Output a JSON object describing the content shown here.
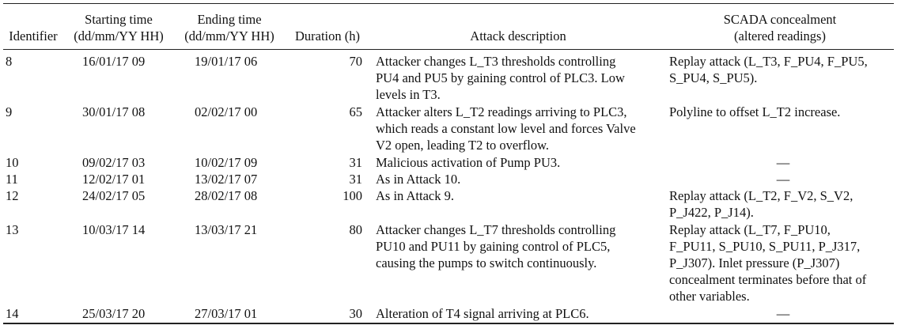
{
  "headers": {
    "identifier": [
      "",
      "Identifier"
    ],
    "starting_time": [
      "Starting time",
      "(dd/mm/YY HH)"
    ],
    "ending_time": [
      "Ending time",
      "(dd/mm/YY HH)"
    ],
    "duration": [
      "",
      "Duration (h)"
    ],
    "attack_description": [
      "",
      "Attack description"
    ],
    "scada": [
      "SCADA concealment",
      "(altered readings)"
    ]
  },
  "rows": [
    {
      "id": "8",
      "start": "16/01/17 09",
      "end": "19/01/17 06",
      "duration": "70",
      "description": [
        "Attacker changes L_T3 thresholds controlling",
        "PU4 and PU5 by gaining control of PLC3. Low",
        "levels in T3."
      ],
      "scada": [
        "Replay attack (L_T3, F_PU4, F_PU5,",
        "S_PU4, S_PU5)."
      ]
    },
    {
      "id": "9",
      "start": "30/01/17 08",
      "end": "02/02/17 00",
      "duration": "65",
      "description": [
        "Attacker alters L_T2 readings arriving to PLC3,",
        "which reads a constant low level and forces Valve",
        "V2 open, leading T2 to overflow."
      ],
      "scada": [
        "Polyline to offset L_T2 increase."
      ]
    },
    {
      "id": "10",
      "start": "09/02/17 03",
      "end": "10/02/17 09",
      "duration": "31",
      "description": [
        "Malicious activation of Pump PU3."
      ],
      "scada": [
        "—"
      ]
    },
    {
      "id": "11",
      "start": "12/02/17 01",
      "end": "13/02/17 07",
      "duration": "31",
      "description": [
        "As in Attack 10."
      ],
      "scada": [
        "—"
      ]
    },
    {
      "id": "12",
      "start": "24/02/17 05",
      "end": "28/02/17 08",
      "duration": "100",
      "description": [
        "As in Attack 9."
      ],
      "scada": [
        "Replay attack (L_T2, F_V2, S_V2,",
        "P_J422, P_J14)."
      ]
    },
    {
      "id": "13",
      "start": "10/03/17 14",
      "end": "13/03/17 21",
      "duration": "80",
      "description": [
        "Attacker changes L_T7 thresholds controlling",
        "PU10 and PU11 by gaining control of PLC5,",
        "causing the pumps to switch continuously."
      ],
      "scada": [
        "Replay attack (L_T7, F_PU10,",
        "F_PU11, S_PU10, S_PU11, P_J317,",
        "P_J307). Inlet pressure (P_J307)",
        "concealment terminates before that of",
        "other variables."
      ]
    },
    {
      "id": "14",
      "start": "25/03/17 20",
      "end": "27/03/17 01",
      "duration": "30",
      "description": [
        "Alteration of T4 signal arriving at PLC6."
      ],
      "scada": [
        "—"
      ]
    }
  ]
}
